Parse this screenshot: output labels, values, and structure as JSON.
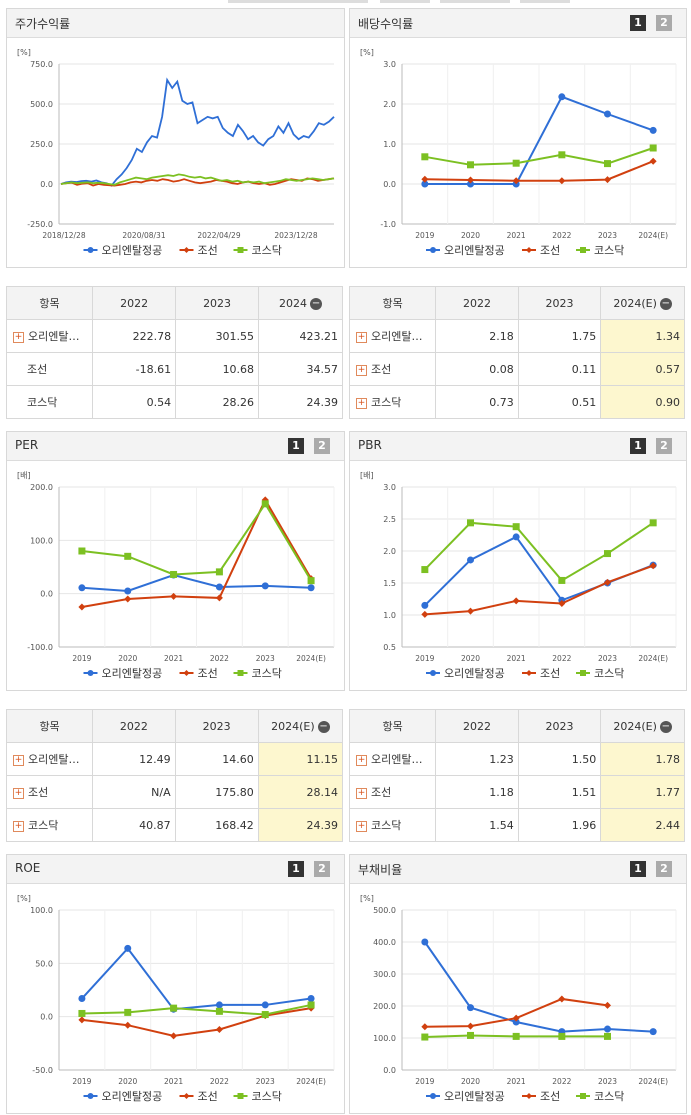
{
  "colors": {
    "orient": "#2f6fd6",
    "chosun": "#d1400f",
    "kosdaq": "#7cc022"
  },
  "legend": [
    "오리엔탈정공",
    "조선",
    "코스닥"
  ],
  "panels": [
    {
      "title": "주가수익률",
      "pager": false
    },
    {
      "title": "배당수익률",
      "pager": true
    },
    {
      "title": "PER",
      "pager": true
    },
    {
      "title": "PBR",
      "pager": true
    },
    {
      "title": "ROE",
      "pager": true
    },
    {
      "title": "부채비율",
      "pager": true
    }
  ],
  "pager": {
    "p1": "1",
    "p2": "2"
  },
  "tables": [
    {
      "header": [
        "항목",
        "2022",
        "2023",
        "2024"
      ],
      "minus": "−",
      "plus": [
        false,
        false,
        false
      ],
      "rows": [
        {
          "name": "오리엔탈…",
          "vals": [
            "222.78",
            "301.55",
            "423.21"
          ]
        },
        {
          "name": "조선",
          "vals": [
            "-18.61",
            "10.68",
            "34.57"
          ]
        },
        {
          "name": "코스닥",
          "vals": [
            "0.54",
            "28.26",
            "24.39"
          ]
        }
      ],
      "highlight": false,
      "firstPlus": true
    },
    {
      "header": [
        "항목",
        "2022",
        "2023",
        "2024(E)"
      ],
      "minus": "−",
      "rows": [
        {
          "name": "오리엔탈…",
          "vals": [
            "2.18",
            "1.75",
            "1.34"
          ]
        },
        {
          "name": "조선",
          "vals": [
            "0.08",
            "0.11",
            "0.57"
          ]
        },
        {
          "name": "코스닥",
          "vals": [
            "0.73",
            "0.51",
            "0.90"
          ]
        }
      ],
      "highlight": true
    },
    {
      "header": [
        "항목",
        "2022",
        "2023",
        "2024(E)"
      ],
      "minus": "−",
      "rows": [
        {
          "name": "오리엔탈…",
          "vals": [
            "12.49",
            "14.60",
            "11.15"
          ]
        },
        {
          "name": "조선",
          "vals": [
            "N/A",
            "175.80",
            "28.14"
          ]
        },
        {
          "name": "코스닥",
          "vals": [
            "40.87",
            "168.42",
            "24.39"
          ]
        }
      ],
      "highlight": true
    },
    {
      "header": [
        "항목",
        "2022",
        "2023",
        "2024(E)"
      ],
      "minus": "−",
      "rows": [
        {
          "name": "오리엔탈…",
          "vals": [
            "1.23",
            "1.50",
            "1.78"
          ]
        },
        {
          "name": "조선",
          "vals": [
            "1.18",
            "1.51",
            "1.77"
          ]
        },
        {
          "name": "코스닥",
          "vals": [
            "1.54",
            "1.96",
            "2.44"
          ]
        }
      ],
      "highlight": true
    }
  ],
  "chart_data": [
    {
      "type": "line",
      "title": "주가수익률",
      "unit": "[%]",
      "x_ticks": [
        "2018/12/28",
        "2020/08/31",
        "2022/04/29",
        "2023/12/28"
      ],
      "y_ticks": [
        "750.0",
        "500.0",
        "250.0",
        "0.0",
        "-250.0"
      ],
      "ylim": [
        -250,
        750
      ],
      "series": [
        {
          "name": "오리엔탈정공",
          "values": [
            0,
            10,
            15,
            12,
            18,
            20,
            15,
            22,
            10,
            5,
            -10,
            30,
            60,
            100,
            150,
            220,
            200,
            260,
            300,
            290,
            420,
            650,
            600,
            640,
            520,
            500,
            510,
            380,
            400,
            420,
            410,
            420,
            350,
            320,
            300,
            370,
            330,
            280,
            300,
            260,
            240,
            280,
            300,
            360,
            320,
            380,
            310,
            280,
            300,
            290,
            330,
            380,
            370,
            390,
            420
          ]
        },
        {
          "name": "조선",
          "values": [
            0,
            5,
            8,
            -5,
            2,
            5,
            -10,
            0,
            -5,
            -8,
            -10,
            -5,
            0,
            10,
            15,
            10,
            20,
            25,
            20,
            30,
            25,
            15,
            20,
            30,
            20,
            10,
            5,
            10,
            15,
            25,
            20,
            15,
            5,
            0,
            10,
            15,
            5,
            0,
            5,
            -5,
            0,
            10,
            20,
            30,
            25,
            20,
            35,
            30,
            20,
            25,
            30,
            35
          ]
        },
        {
          "name": "코스닥",
          "values": [
            0,
            5,
            10,
            5,
            8,
            10,
            5,
            8,
            5,
            0,
            -5,
            10,
            20,
            30,
            40,
            35,
            30,
            40,
            45,
            50,
            55,
            50,
            60,
            55,
            45,
            40,
            45,
            35,
            40,
            30,
            20,
            25,
            15,
            20,
            10,
            15,
            10,
            15,
            5,
            10,
            15,
            20,
            30,
            25,
            20,
            25,
            30,
            35,
            30,
            25,
            30,
            35
          ]
        }
      ]
    },
    {
      "type": "line",
      "title": "배당수익률",
      "unit": "[%]",
      "categories": [
        "2019",
        "2020",
        "2021",
        "2022",
        "2023",
        "2024(E)"
      ],
      "y_ticks": [
        "3.0",
        "2.0",
        "1.0",
        "0.0",
        "-1.0"
      ],
      "ylim": [
        -1,
        3
      ],
      "series": [
        {
          "name": "오리엔탈정공",
          "values": [
            0.0,
            0.0,
            0.0,
            2.18,
            1.75,
            1.34
          ]
        },
        {
          "name": "조선",
          "values": [
            0.12,
            0.1,
            0.08,
            0.08,
            0.11,
            0.57
          ]
        },
        {
          "name": "코스닥",
          "values": [
            0.68,
            0.48,
            0.52,
            0.73,
            0.51,
            0.9
          ]
        }
      ]
    },
    {
      "type": "line",
      "title": "PER",
      "unit": "[배]",
      "categories": [
        "2019",
        "2020",
        "2021",
        "2022",
        "2023",
        "2024(E)"
      ],
      "y_ticks": [
        "200.0",
        "100.0",
        "0.0",
        "-100.0"
      ],
      "ylim": [
        -100,
        200
      ],
      "series": [
        {
          "name": "오리엔탈정공",
          "values": [
            11,
            5,
            35,
            12.49,
            14.6,
            11.15
          ]
        },
        {
          "name": "조선",
          "values": [
            -25,
            -10,
            -5,
            -8,
            175.8,
            28.14
          ]
        },
        {
          "name": "코스닥",
          "values": [
            80,
            70,
            36,
            40.87,
            168.42,
            24.39
          ]
        }
      ]
    },
    {
      "type": "line",
      "title": "PBR",
      "unit": "[배]",
      "categories": [
        "2019",
        "2020",
        "2021",
        "2022",
        "2023",
        "2024(E)"
      ],
      "y_ticks": [
        "3.0",
        "2.5",
        "2.0",
        "1.5",
        "1.0",
        "0.5"
      ],
      "ylim": [
        0.5,
        3
      ],
      "series": [
        {
          "name": "오리엔탈정공",
          "values": [
            1.15,
            1.86,
            2.22,
            1.23,
            1.5,
            1.78
          ]
        },
        {
          "name": "조선",
          "values": [
            1.01,
            1.06,
            1.22,
            1.18,
            1.51,
            1.77
          ]
        },
        {
          "name": "코스닥",
          "values": [
            1.71,
            2.44,
            2.38,
            1.54,
            1.96,
            2.44
          ]
        }
      ]
    },
    {
      "type": "line",
      "title": "ROE",
      "unit": "[%]",
      "categories": [
        "2019",
        "2020",
        "2021",
        "2022",
        "2023",
        "2024(E)"
      ],
      "y_ticks": [
        "100.0",
        "50.0",
        "0.0",
        "-50.0"
      ],
      "ylim": [
        -50,
        100
      ],
      "series": [
        {
          "name": "오리엔탈정공",
          "values": [
            17,
            64,
            7,
            11,
            11,
            17
          ]
        },
        {
          "name": "조선",
          "values": [
            -3,
            -8,
            -18,
            -12,
            1,
            8
          ]
        },
        {
          "name": "코스닥",
          "values": [
            3,
            4,
            8,
            5,
            2,
            11
          ]
        }
      ]
    },
    {
      "type": "line",
      "title": "부채비율",
      "unit": "[%]",
      "categories": [
        "2019",
        "2020",
        "2021",
        "2022",
        "2023",
        "2024(E)"
      ],
      "y_ticks": [
        "500.0",
        "400.0",
        "300.0",
        "200.0",
        "100.0",
        "0.0"
      ],
      "ylim": [
        0,
        500
      ],
      "series": [
        {
          "name": "오리엔탈정공",
          "values": [
            400,
            195,
            150,
            120,
            128,
            120
          ]
        },
        {
          "name": "조선",
          "values": [
            135,
            137,
            162,
            222,
            202,
            null
          ]
        },
        {
          "name": "코스닥",
          "values": [
            103,
            108,
            105,
            105,
            105,
            null
          ]
        }
      ]
    }
  ]
}
